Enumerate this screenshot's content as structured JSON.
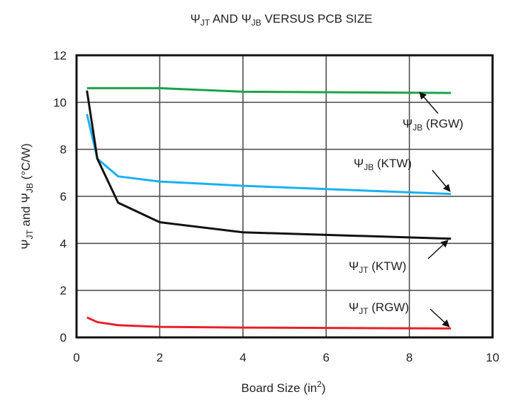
{
  "chart_data": {
    "type": "line",
    "title": {
      "psi1": "Ψ",
      "sub1": "JT",
      "mid": " AND ",
      "psi2": "Ψ",
      "sub2": "JB",
      "rest": " VERSUS PCB SIZE"
    },
    "xlabel": {
      "main": "Board Size (in",
      "sup": "2",
      "end": ")"
    },
    "ylabel": {
      "psi1": "Ψ",
      "sub1": "JT",
      "mid": " and ",
      "psi2": "Ψ",
      "sub2": "JB",
      "rest": " (°C/W)"
    },
    "xlim": [
      0,
      10
    ],
    "ylim": [
      0,
      12
    ],
    "xticks": [
      "0",
      "2",
      "4",
      "6",
      "8",
      "10"
    ],
    "yticks": [
      "0",
      "2",
      "4",
      "6",
      "8",
      "10",
      "12"
    ],
    "grid": true,
    "x": [
      0.25,
      0.5,
      1,
      2,
      4,
      9
    ],
    "series": [
      {
        "name": "ΨJB (RGW)",
        "color": "#1aa34a",
        "values": [
          10.6,
          10.6,
          10.6,
          10.6,
          10.45,
          10.4
        ],
        "label": {
          "psi": "Ψ",
          "sub": "JB",
          "rest": " (RGW)"
        }
      },
      {
        "name": "ΨJB (KTW)",
        "color": "#1ab0ef",
        "values": [
          9.5,
          7.6,
          6.85,
          6.63,
          6.45,
          6.1
        ],
        "label": {
          "psi": "Ψ",
          "sub": "JB",
          "rest": " (KTW)"
        }
      },
      {
        "name": "ΨJT (KTW)",
        "color": "#111111",
        "values": [
          10.5,
          7.6,
          5.73,
          4.9,
          4.47,
          4.2
        ],
        "label": {
          "psi": "Ψ",
          "sub": "JT",
          "rest": " (KTW)"
        }
      },
      {
        "name": "ΨJT (RGW)",
        "color": "#e8202a",
        "values": [
          0.85,
          0.65,
          0.52,
          0.45,
          0.42,
          0.38
        ],
        "label": {
          "psi": "Ψ",
          "sub": "JT",
          "rest": " (RGW)"
        }
      }
    ]
  }
}
